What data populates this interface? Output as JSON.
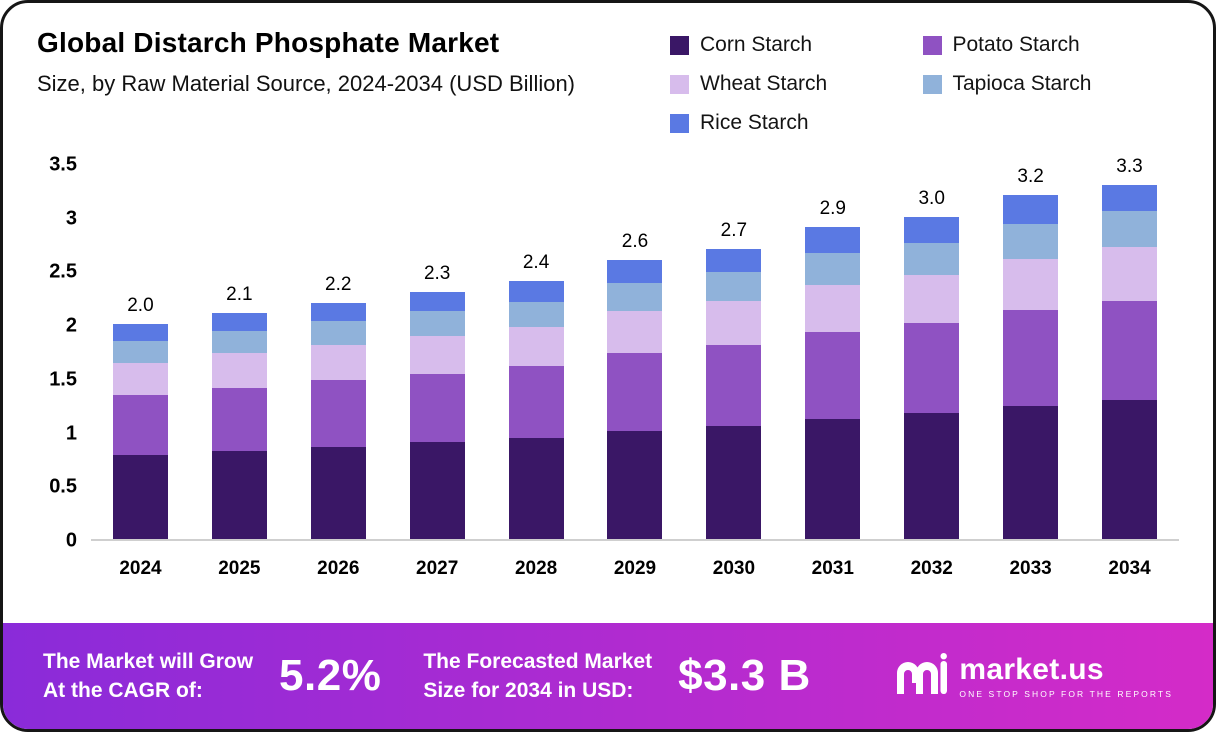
{
  "header": {
    "title": "Global Distarch Phosphate Market",
    "subtitle": "Size, by Raw Material Source, 2024-2034 (USD Billion)"
  },
  "chart_data": {
    "type": "bar",
    "stacked": true,
    "title": "Global Distarch Phosphate Market Size, by Raw Material Source, 2024-2034 (USD Billion)",
    "categories": [
      "2024",
      "2025",
      "2026",
      "2027",
      "2028",
      "2029",
      "2030",
      "2031",
      "2032",
      "2033",
      "2034"
    ],
    "totals": [
      "2.0",
      "2.1",
      "2.2",
      "2.3",
      "2.4",
      "2.6",
      "2.7",
      "2.9",
      "3.0",
      "3.2",
      "3.3"
    ],
    "xlabel": "",
    "ylabel": "USD Billion",
    "ylim": [
      0,
      3.5
    ],
    "yticks": [
      "3.5",
      "3",
      "2.5",
      "2",
      "1.5",
      "1",
      "0.5",
      "0"
    ],
    "grid": false,
    "legend_position": "top-right",
    "series": [
      {
        "name": "Corn Starch",
        "color": "#3a1766",
        "values": [
          0.78,
          0.82,
          0.86,
          0.9,
          0.94,
          1.01,
          1.05,
          1.12,
          1.17,
          1.24,
          1.29
        ]
      },
      {
        "name": "Potato Starch",
        "color": "#8f52c2",
        "values": [
          0.56,
          0.59,
          0.62,
          0.64,
          0.67,
          0.72,
          0.76,
          0.81,
          0.84,
          0.89,
          0.93
        ]
      },
      {
        "name": "Wheat Starch",
        "color": "#d7bcec",
        "values": [
          0.3,
          0.32,
          0.33,
          0.35,
          0.36,
          0.39,
          0.41,
          0.43,
          0.45,
          0.48,
          0.5
        ]
      },
      {
        "name": "Tapioca Starch",
        "color": "#90b2da",
        "values": [
          0.2,
          0.21,
          0.22,
          0.23,
          0.24,
          0.26,
          0.27,
          0.3,
          0.3,
          0.32,
          0.33
        ]
      },
      {
        "name": "Rice Starch",
        "color": "#5a79e3",
        "values": [
          0.16,
          0.16,
          0.17,
          0.18,
          0.19,
          0.22,
          0.21,
          0.24,
          0.24,
          0.27,
          0.25
        ]
      }
    ]
  },
  "banner": {
    "gradient": [
      "#8a2bd9",
      "#d42bc8"
    ],
    "cagr_label_line1": "The Market will Grow",
    "cagr_label_line2": "At the CAGR of:",
    "cagr_value": "5.2%",
    "forecast_label_line1": "The Forecasted Market",
    "forecast_label_line2": "Size for 2034 in USD:",
    "forecast_value": "$3.3 B",
    "brand": "market.us",
    "brand_tagline": "ONE STOP SHOP FOR THE REPORTS"
  }
}
